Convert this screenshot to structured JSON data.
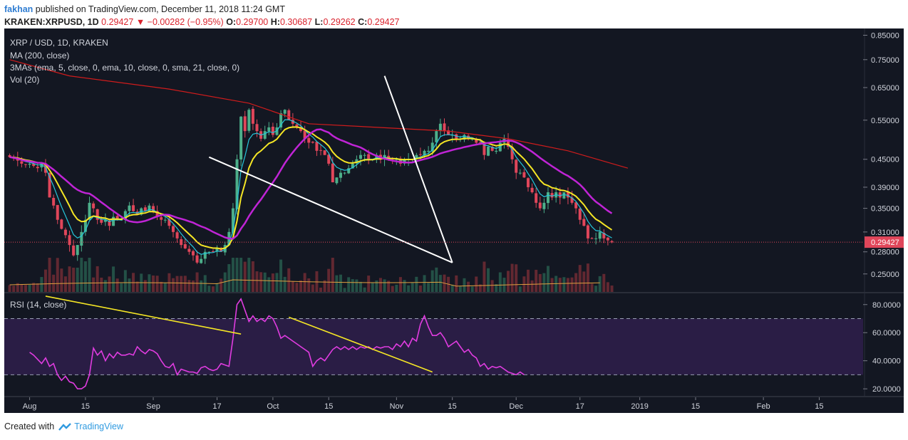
{
  "header": {
    "author": "fakhan",
    "published_text": "published on TradingView.com, December 11, 2018 11:24 GMT",
    "symbol": "KRAKEN:XRPUSD, 1D",
    "last_price": "0.29427",
    "change": "−0.00282 (−0.95%)",
    "ohlc": {
      "o_label": "O:",
      "o": "0.29700",
      "h_label": "H:",
      "h": "0.30687",
      "l_label": "L:",
      "l": "0.29262",
      "c_label": "C:",
      "c": "0.29427"
    }
  },
  "footer": {
    "created_with": "Created with",
    "brand": "TradingView"
  },
  "colors": {
    "background": "#131722",
    "rsi_band": "#2a1d45",
    "up": "#4caf8a",
    "down": "#e0465a",
    "ma200": "#d01c1c",
    "ema5": "#26c6da",
    "ema10": "#f5e625",
    "sma21": "#c024d6",
    "rsi": "#e03ce0",
    "trendline": "#ffffff",
    "rsi_trendline": "#f5e625",
    "vol_ma": "#e0a040"
  },
  "chart_data": {
    "type": "candlestick",
    "title": "XRP / USD, 1D, KRAKEN",
    "legend": [
      "MA (200, close)",
      "3MAs (ema, 5, close, 0, ema, 10, close, 0, sma, 21, close, 0)",
      "Vol (20)"
    ],
    "y_scale": "log",
    "y_ticks": [
      "0.85000",
      "0.75000",
      "0.65000",
      "0.55000",
      "0.45000",
      "0.39000",
      "0.35000",
      "0.31000",
      "0.28000",
      "0.25000"
    ],
    "y_range": [
      0.228,
      0.88
    ],
    "last_price_label": "0.29427",
    "x_ticks": [
      "Aug",
      "15",
      "Sep",
      "17",
      "Oct",
      "15",
      "Nov",
      "15",
      "Dec",
      "17",
      "2019",
      "15",
      "Feb",
      "15"
    ],
    "x_tick_dates": [
      "2018-08-01",
      "2018-08-15",
      "2018-09-01",
      "2018-09-17",
      "2018-10-01",
      "2018-10-15",
      "2018-11-01",
      "2018-11-15",
      "2018-12-01",
      "2018-12-17",
      "2019-01-01",
      "2019-01-15",
      "2019-02-01",
      "2019-02-15"
    ],
    "x_range": [
      "2018-07-26",
      "2019-02-26"
    ],
    "closes_start_date": "2018-07-27",
    "closes": [
      0.455,
      0.452,
      0.447,
      0.44,
      0.438,
      0.44,
      0.435,
      0.43,
      0.44,
      0.42,
      0.37,
      0.355,
      0.33,
      0.315,
      0.305,
      0.29,
      0.275,
      0.29,
      0.31,
      0.33,
      0.36,
      0.35,
      0.33,
      0.325,
      0.33,
      0.32,
      0.335,
      0.33,
      0.33,
      0.345,
      0.355,
      0.345,
      0.34,
      0.35,
      0.345,
      0.355,
      0.345,
      0.335,
      0.33,
      0.33,
      0.32,
      0.31,
      0.3,
      0.29,
      0.285,
      0.28,
      0.275,
      0.265,
      0.27,
      0.28,
      0.28,
      0.28,
      0.285,
      0.28,
      0.29,
      0.31,
      0.35,
      0.45,
      0.56,
      0.52,
      0.58,
      0.54,
      0.52,
      0.5,
      0.52,
      0.53,
      0.51,
      0.53,
      0.57,
      0.58,
      0.55,
      0.54,
      0.53,
      0.52,
      0.5,
      0.49,
      0.49,
      0.47,
      0.47,
      0.46,
      0.44,
      0.4,
      0.41,
      0.42,
      0.42,
      0.43,
      0.44,
      0.45,
      0.46,
      0.46,
      0.45,
      0.45,
      0.46,
      0.45,
      0.46,
      0.45,
      0.45,
      0.45,
      0.44,
      0.45,
      0.45,
      0.45,
      0.46,
      0.46,
      0.47,
      0.47,
      0.49,
      0.52,
      0.54,
      0.52,
      0.51,
      0.51,
      0.5,
      0.5,
      0.51,
      0.5,
      0.5,
      0.49,
      0.49,
      0.46,
      0.48,
      0.47,
      0.47,
      0.49,
      0.5,
      0.48,
      0.45,
      0.42,
      0.42,
      0.41,
      0.39,
      0.38,
      0.36,
      0.35,
      0.36,
      0.38,
      0.37,
      0.38,
      0.37,
      0.38,
      0.37,
      0.36,
      0.35,
      0.33,
      0.32,
      0.3,
      0.3,
      0.3,
      0.31,
      0.3,
      0.297,
      0.294
    ],
    "ma200": [
      [
        0,
        0.75
      ],
      [
        15,
        0.69
      ],
      [
        40,
        0.645
      ],
      [
        60,
        0.6
      ],
      [
        75,
        0.54
      ],
      [
        110,
        0.52
      ],
      [
        125,
        0.5
      ],
      [
        140,
        0.47
      ],
      [
        155,
        0.43
      ]
    ],
    "rsi": {
      "label": "RSI (14, close)",
      "y_ticks": [
        "80.0000",
        "60.0000",
        "40.0000",
        "20.0000"
      ],
      "y_range": [
        15,
        88
      ],
      "bands": [
        30,
        70
      ],
      "values_start_date": "2018-08-01",
      "values": [
        46,
        44,
        41,
        38,
        42,
        36,
        38,
        30,
        26,
        29,
        25,
        24,
        20,
        20,
        22,
        30,
        49,
        44,
        47,
        40,
        45,
        42,
        46,
        44,
        44,
        45,
        44,
        50,
        47,
        45,
        48,
        47,
        45,
        40,
        36,
        35,
        38,
        30,
        34,
        33,
        32,
        32,
        31,
        35,
        36,
        34,
        33,
        34,
        38,
        37,
        36,
        56,
        80,
        84,
        76,
        68,
        72,
        68,
        70,
        68,
        72,
        70,
        64,
        56,
        58,
        56,
        54,
        52,
        50,
        48,
        46,
        36,
        40,
        42,
        40,
        44,
        48,
        50,
        48,
        50,
        48,
        50,
        48,
        50,
        49,
        50,
        48,
        50,
        49,
        50,
        50,
        48,
        52,
        50,
        54,
        50,
        56,
        54,
        66,
        72,
        64,
        58,
        58,
        60,
        56,
        50,
        52,
        54,
        50,
        46,
        48,
        44,
        42,
        36,
        38,
        34,
        36,
        35,
        36,
        34,
        32,
        31,
        30,
        32,
        30
      ],
      "trendlines": [
        [
          [
            4,
            86
          ],
          [
            53,
            59
          ]
        ],
        [
          [
            65,
            71
          ],
          [
            101,
            32
          ]
        ]
      ]
    },
    "trendlines": [
      [
        [
          50,
          0.455
        ],
        [
          111,
          0.265
        ]
      ],
      [
        [
          94,
          0.69
        ],
        [
          111,
          0.265
        ]
      ]
    ]
  }
}
